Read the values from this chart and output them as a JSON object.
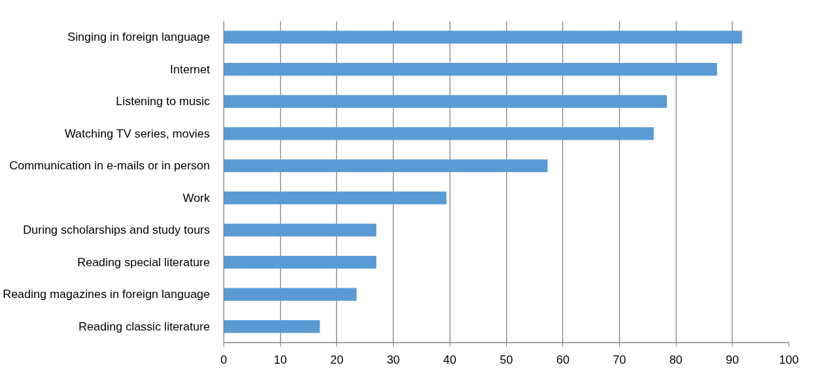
{
  "chart_data": {
    "type": "bar",
    "orientation": "horizontal",
    "categories": [
      "Singing in foreign language",
      "Internet",
      "Listening to music",
      "Watching TV series, movies",
      "Communication in e-mails or in person",
      "Work",
      "During scholarships and study tours",
      "Reading special literature",
      "Reading magazines in foreign language",
      "Reading classic literature"
    ],
    "values": [
      91.7,
      87.3,
      78.4,
      76.1,
      57.3,
      39.4,
      27.0,
      27.0,
      23.5,
      17.0
    ],
    "color": "#5b9bd5",
    "xlim": [
      0,
      100
    ],
    "xticks": [
      0,
      10,
      20,
      30,
      40,
      50,
      60,
      70,
      80,
      90,
      100
    ],
    "grid": "x"
  }
}
